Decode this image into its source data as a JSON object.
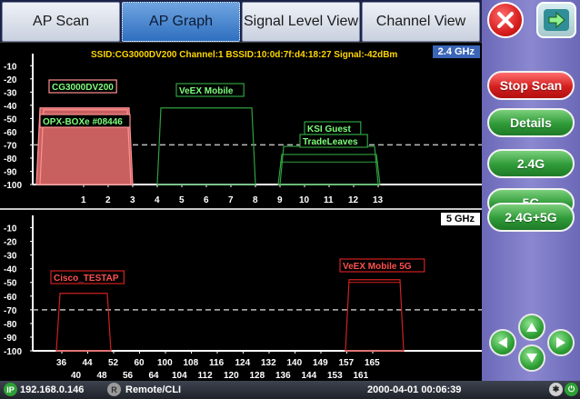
{
  "tabs": [
    {
      "label": "AP Scan"
    },
    {
      "label": "AP Graph"
    },
    {
      "label": "Signal Level View"
    },
    {
      "label": "Channel View"
    }
  ],
  "active_tab": "AP Graph",
  "panel_24": {
    "badge": "2.4 GHz",
    "info": "SSID:CG3000DV200  Channel:1  BSSID:10:0d:7f:d4:18:27  Signal:-42dBm"
  },
  "panel_5": {
    "badge": "5 GHz"
  },
  "side": {
    "stop_scan": "Stop Scan",
    "details": "Details",
    "band_24": "2.4G",
    "band_5": "5G",
    "band_both": "2.4G+5G"
  },
  "status": {
    "ip": "192.168.0.146",
    "ip_icon": "IP",
    "remote_icon": "R",
    "remote": "Remote/CLI",
    "datetime": "2000-04-01  00:06:39"
  },
  "colors": {
    "selected_fill": "#c86060",
    "red_ap": "#d02020",
    "green_ap": "#2fa040",
    "info_text": "#ffd700",
    "threshold": "#bdbdbd"
  },
  "chart_data": [
    {
      "type": "area",
      "band": "2.4 GHz",
      "y_ticks": [
        -10,
        -20,
        -30,
        -40,
        -50,
        -60,
        -70,
        -80,
        -90,
        -100
      ],
      "ylim": [
        -100,
        -5
      ],
      "x_ticks": [
        "1",
        "2",
        "3",
        "4",
        "5",
        "6",
        "7",
        "8",
        "9",
        "10",
        "11",
        "12",
        "13"
      ],
      "threshold_dbm": -70,
      "series": [
        {
          "name": "CG3000DV200",
          "channel": 1,
          "signal_dbm": -42,
          "color": "red",
          "selected": true
        },
        {
          "name": "OPX-BOXe #08446",
          "channel": 1,
          "signal_dbm": -42,
          "color": "red"
        },
        {
          "name": "VeEX Mobile",
          "channel": 6,
          "signal_dbm": -42,
          "color": "green"
        },
        {
          "name": "KSI Guest",
          "channel": 11,
          "signal_dbm": -78,
          "color": "green"
        },
        {
          "name": "TradeLeaves",
          "channel": 11,
          "signal_dbm": -80,
          "color": "green"
        }
      ]
    },
    {
      "type": "area",
      "band": "5 GHz",
      "y_ticks": [
        -10,
        -20,
        -30,
        -40,
        -50,
        -60,
        -70,
        -80,
        -90,
        -100
      ],
      "ylim": [
        -100,
        -5
      ],
      "x_ticks_top": [
        "36",
        "44",
        "52",
        "60",
        "100",
        "108",
        "116",
        "124",
        "132",
        "140",
        "149",
        "157",
        "165"
      ],
      "x_ticks_bottom": [
        "40",
        "48",
        "56",
        "64",
        "104",
        "112",
        "120",
        "128",
        "136",
        "144",
        "153",
        "161"
      ],
      "threshold_dbm": -70,
      "series": [
        {
          "name": "Cisco_TESTAP",
          "channel": 44,
          "signal_dbm": -58,
          "color": "red"
        },
        {
          "name": "VeEX Mobile 5G",
          "channel": 153,
          "signal_dbm": -48,
          "color": "red"
        }
      ]
    }
  ]
}
